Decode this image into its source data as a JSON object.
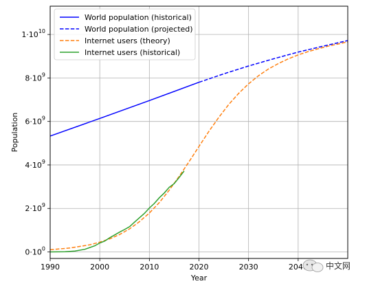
{
  "chart_data": {
    "type": "line",
    "title": "",
    "xlabel": "Year",
    "ylabel": "Population",
    "xlim": [
      1990,
      2050
    ],
    "ylim": [
      -0.3,
      11.3
    ],
    "x_ticks": [
      1990,
      2000,
      2010,
      2020,
      2030,
      2040
    ],
    "x_tick_labels": [
      "1990",
      "2000",
      "2010",
      "2020",
      "2030",
      "2040"
    ],
    "y_ticks": [
      0,
      2,
      4,
      6,
      8,
      10
    ],
    "y_tick_labels": [
      {
        "mantissa": "0·10",
        "exp": "0"
      },
      {
        "mantissa": "2·10",
        "exp": "9"
      },
      {
        "mantissa": "4·10",
        "exp": "9"
      },
      {
        "mantissa": "6·10",
        "exp": "9"
      },
      {
        "mantissa": "8·10",
        "exp": "9"
      },
      {
        "mantissa": "1·10",
        "exp": "10"
      }
    ],
    "y_unit": "billions",
    "grid": true,
    "legend_position": "top-left",
    "series": [
      {
        "name": "World population (historical)",
        "color": "#0000ff",
        "style": "solid",
        "x": [
          1990,
          2000,
          2010,
          2020
        ],
        "y": [
          5.33,
          6.14,
          6.96,
          7.8
        ]
      },
      {
        "name": "World population (projected)",
        "color": "#0000ff",
        "style": "dashed",
        "x": [
          2020,
          2025,
          2030,
          2035,
          2040,
          2045,
          2050
        ],
        "y": [
          7.8,
          8.19,
          8.55,
          8.88,
          9.19,
          9.46,
          9.72
        ]
      },
      {
        "name": "Internet users (theory)",
        "color": "#ff7f0e",
        "style": "dashed",
        "x": [
          1990,
          1994,
          1998,
          2000,
          2002,
          2004,
          2006,
          2008,
          2010,
          2012,
          2014,
          2016,
          2018,
          2020,
          2022,
          2024,
          2026,
          2028,
          2030,
          2032,
          2034,
          2036,
          2038,
          2040,
          2042,
          2044,
          2046,
          2048,
          2050
        ],
        "y": [
          0.1,
          0.18,
          0.33,
          0.45,
          0.6,
          0.8,
          1.06,
          1.39,
          1.79,
          2.27,
          2.84,
          3.47,
          4.15,
          4.85,
          5.54,
          6.19,
          6.78,
          7.29,
          7.73,
          8.1,
          8.41,
          8.66,
          8.88,
          9.06,
          9.21,
          9.34,
          9.46,
          9.56,
          9.66
        ]
      },
      {
        "name": "Internet users (historical)",
        "color": "#2ca02c",
        "style": "solid",
        "x": [
          1990,
          1993,
          1995,
          1997,
          1999,
          2000,
          2001,
          2002,
          2003,
          2004,
          2005,
          2006,
          2007,
          2008,
          2009,
          2010,
          2011,
          2012,
          2013,
          2014,
          2015,
          2016,
          2017
        ],
        "y": [
          0.0,
          0.01,
          0.04,
          0.12,
          0.28,
          0.41,
          0.5,
          0.65,
          0.78,
          0.91,
          1.03,
          1.16,
          1.37,
          1.57,
          1.77,
          2.02,
          2.23,
          2.49,
          2.71,
          2.97,
          3.14,
          3.42,
          3.72
        ]
      }
    ]
  },
  "watermark": {
    "text": "中文网",
    "icon": "chat-bubble-logo-icon",
    "color": "#ff4d4f"
  }
}
